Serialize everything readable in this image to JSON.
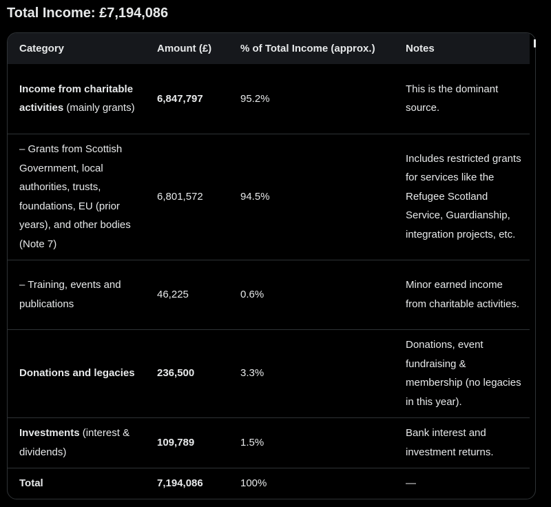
{
  "heading": "Total Income: £7,194,086",
  "table": {
    "headers": [
      "Category",
      "Amount (£)",
      "% of Total Income (approx.)",
      "Notes"
    ],
    "rows": [
      {
        "category_bold": "Income from charitable activities",
        "category_rest": " (mainly grants)",
        "amount": "6,847,797",
        "amount_bold": true,
        "percent": "95.2%",
        "notes": "This is the dominant source."
      },
      {
        "category_bold": "",
        "category_rest": "– Grants from Scottish Government, local authorities, trusts, foundations, EU (prior years), and other bodies (Note 7)",
        "amount": "6,801,572",
        "amount_bold": false,
        "percent": "94.5%",
        "notes": "Includes restricted grants for services like the Refugee Scotland Service, Guardianship, integration projects, etc."
      },
      {
        "category_bold": "",
        "category_rest": "– Training, events and publications",
        "amount": "46,225",
        "amount_bold": false,
        "percent": "0.6%",
        "notes": "Minor earned income from charitable activities."
      },
      {
        "category_bold": "Donations and legacies",
        "category_rest": "",
        "amount": "236,500",
        "amount_bold": true,
        "percent": "3.3%",
        "notes": "Donations, event fundraising & membership (no legacies in this year)."
      },
      {
        "category_bold": "Investments",
        "category_rest": " (interest & dividends)",
        "amount": "109,789",
        "amount_bold": true,
        "percent": "1.5%",
        "notes": "Bank interest and investment returns."
      },
      {
        "category_bold": "Total",
        "category_rest": "",
        "amount": "7,194,086",
        "amount_bold": true,
        "percent": "100%",
        "notes": "—"
      }
    ]
  }
}
